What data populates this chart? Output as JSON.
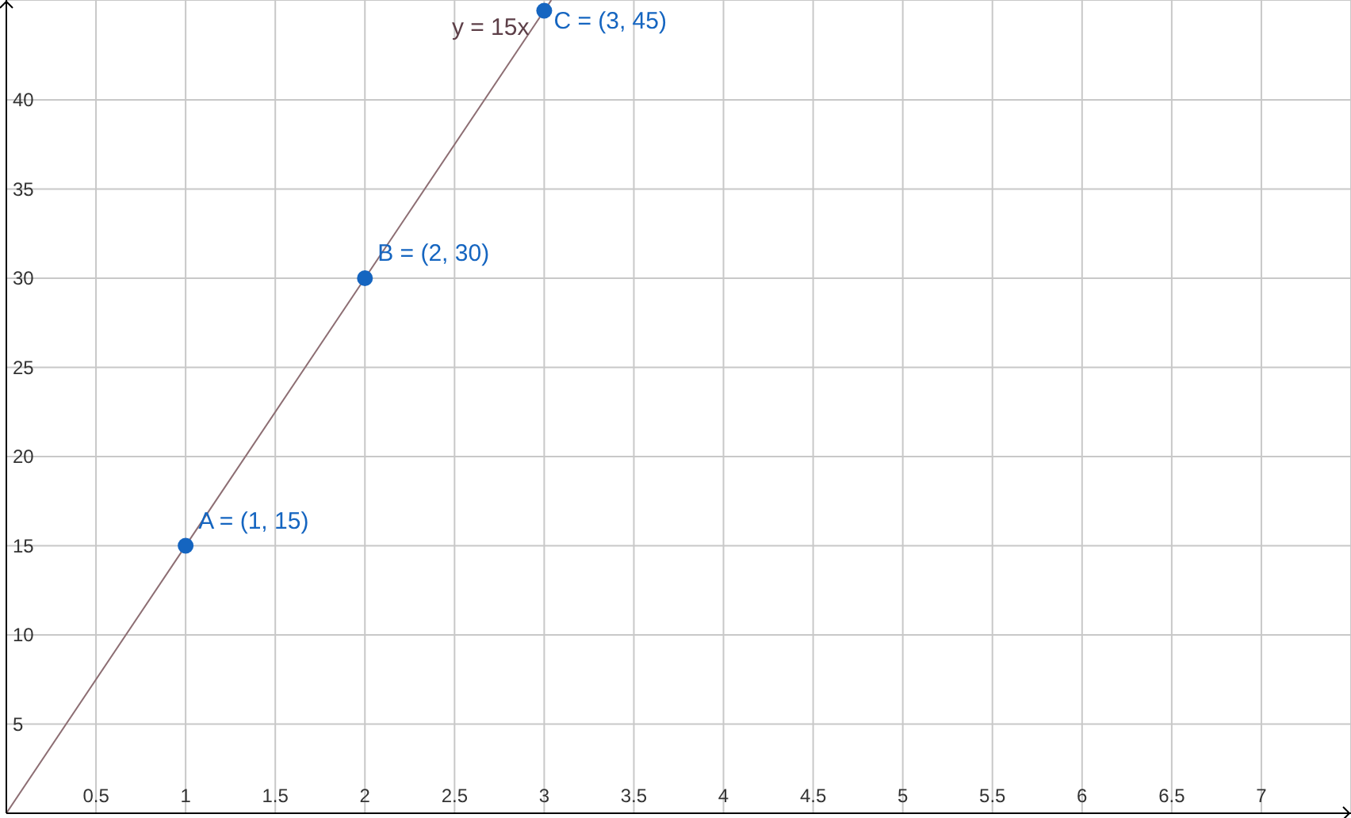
{
  "chart_data": {
    "type": "line",
    "xlim": [
      0,
      7.5
    ],
    "ylim": [
      0,
      45.6
    ],
    "xticks": [
      0.5,
      1,
      1.5,
      2,
      2.5,
      3,
      3.5,
      4,
      4.5,
      5,
      5.5,
      6,
      6.5,
      7
    ],
    "yticks": [
      5,
      10,
      15,
      20,
      25,
      30,
      35,
      40
    ],
    "grid": true,
    "series": [
      {
        "type": "line",
        "name": "y = 15x",
        "color": "#8d6e73",
        "x": [
          0,
          3.04
        ],
        "values": [
          0,
          45.6
        ],
        "marker": "none"
      },
      {
        "type": "scatter",
        "color": "#1565c0",
        "x": [
          1,
          2,
          3
        ],
        "values": [
          15,
          30,
          45
        ],
        "marker": "circle",
        "value_labels": [
          "A = (1, 15)",
          "B = (2, 30)",
          "C = (3, 45)"
        ]
      }
    ]
  }
}
